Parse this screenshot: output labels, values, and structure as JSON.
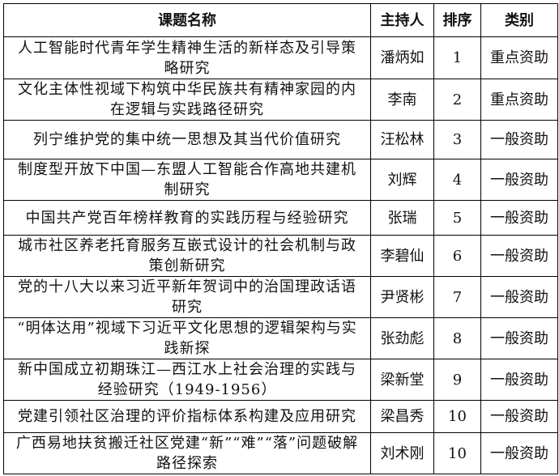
{
  "headers": [
    "课题名称",
    "主持人",
    "排序",
    "类别"
  ],
  "rows": [
    {
      "title": "人工智能时代青年学生精神生活的新样态及引导策略研究",
      "host": "潘炳如",
      "order": "1",
      "category": "重点资助"
    },
    {
      "title": "文化主体性视域下构筑中华民族共有精神家园的内在逻辑与实践路径研究",
      "host": "李南",
      "order": "2",
      "category": "重点资助"
    },
    {
      "title": "列宁维护党的集中统一思想及其当代价值研究",
      "host": "汪松林",
      "order": "3",
      "category": "一般资助"
    },
    {
      "title": "制度型开放下中国—东盟人工智能合作高地共建机制研究",
      "host": "刘辉",
      "order": "4",
      "category": "一般资助"
    },
    {
      "title": "中国共产党百年榜样教育的实践历程与经验研究",
      "host": "张瑞",
      "order": "5",
      "category": "一般资助"
    },
    {
      "title": "城市社区养老托育服务互嵌式设计的社会机制与政策创新研究",
      "host": "李碧仙",
      "order": "6",
      "category": "一般资助"
    },
    {
      "title": "党的十八大以来习近平新年贺词中的治国理政话语研究",
      "host": "尹贤彬",
      "order": "7",
      "category": "一般资助"
    },
    {
      "title": "“明体达用”视域下习近平文化思想的逻辑架构与实践新探",
      "host": "张劲彪",
      "order": "8",
      "category": "一般资助"
    },
    {
      "title": "新中国成立初期珠江—西江水上社会治理的实践与经验研究（1949-1956）",
      "host": "梁新堂",
      "order": "9",
      "category": "一般资助"
    },
    {
      "title": "党建引领社区治理的评价指标体系构建及应用研究",
      "host": "梁昌秀",
      "order": "10",
      "category": "一般资助"
    },
    {
      "title": "广西易地扶贫搬迁社区党建“新”“难”“落”问题破解路径探索",
      "host": "刘术刚",
      "order": "10",
      "category": "一般资助"
    }
  ]
}
